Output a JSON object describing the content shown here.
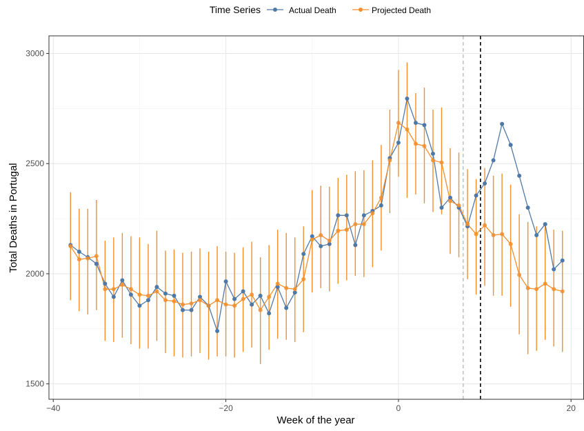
{
  "chart_data": {
    "type": "line",
    "xlabel": "Week of the year",
    "ylabel": "Total Deaths in Portugal",
    "xlim": [
      -40.5,
      21.5
    ],
    "ylim": [
      1430,
      3080
    ],
    "xticks": [
      -40,
      -20,
      0,
      20
    ],
    "xtick_labels": [
      "−40",
      "−20",
      "0",
      "20"
    ],
    "yticks": [
      1500,
      2000,
      2500,
      3000
    ],
    "ytick_labels": [
      "1500",
      "2000",
      "2500",
      "3000"
    ],
    "grid": true,
    "legend": {
      "title": "Time Series",
      "placement": "top",
      "entries": [
        {
          "name": "Actual Death",
          "color": "#4e79a7"
        },
        {
          "name": "Projected Death",
          "color": "#f28e2b"
        }
      ]
    },
    "vlines": [
      {
        "x": 7.5,
        "style": "dashed",
        "color": "#bbbbbb"
      },
      {
        "x": 9.5,
        "style": "dashed",
        "color": "#000000"
      }
    ],
    "x": [
      -38,
      -37,
      -36,
      -35,
      -34,
      -33,
      -32,
      -31,
      -30,
      -29,
      -28,
      -27,
      -26,
      -25,
      -24,
      -23,
      -22,
      -21,
      -20,
      -19,
      -18,
      -17,
      -16,
      -15,
      -14,
      -13,
      -12,
      -11,
      -10,
      -9,
      -8,
      -7,
      -6,
      -5,
      -4,
      -3,
      -2,
      -1,
      0,
      1,
      2,
      3,
      4,
      5,
      6,
      7,
      8,
      9,
      10,
      11,
      12,
      13,
      14,
      15,
      16,
      17,
      18,
      19
    ],
    "series": [
      {
        "name": "Actual Death",
        "color": "#4e79a7",
        "values": [
          2130,
          2100,
          2075,
          2045,
          1955,
          1895,
          1970,
          1905,
          1855,
          1880,
          1940,
          1910,
          1900,
          1835,
          1835,
          1895,
          1855,
          1740,
          1965,
          1885,
          1920,
          1860,
          1900,
          1820,
          1940,
          1845,
          1915,
          2090,
          2170,
          2125,
          2135,
          2265,
          2265,
          2130,
          2265,
          2285,
          2310,
          2525,
          2595,
          2795,
          2685,
          2675,
          2545,
          2300,
          2345,
          2300,
          2215,
          2355,
          2410,
          2515,
          2680,
          2585,
          2445,
          2300,
          2175,
          2225,
          2020,
          2060
        ]
      },
      {
        "name": "Projected Death",
        "color": "#f28e2b",
        "values": [
          2125,
          2065,
          2070,
          2080,
          1930,
          1930,
          1950,
          1930,
          1905,
          1900,
          1920,
          1880,
          1875,
          1860,
          1865,
          1880,
          1855,
          1880,
          1860,
          1855,
          1885,
          1905,
          1835,
          1895,
          1955,
          1935,
          1930,
          1975,
          2155,
          2175,
          2150,
          2195,
          2200,
          2225,
          2225,
          2275,
          2345,
          2515,
          2685,
          2655,
          2590,
          2580,
          2515,
          2505,
          2330,
          2310,
          2225,
          2180,
          2220,
          2175,
          2180,
          2135,
          1995,
          1935,
          1930,
          1955,
          1930,
          1920
        ],
        "lower": [
          1880,
          1830,
          1815,
          1835,
          1695,
          1690,
          1710,
          1680,
          1660,
          1660,
          1695,
          1640,
          1625,
          1620,
          1625,
          1640,
          1610,
          1625,
          1625,
          1620,
          1645,
          1665,
          1590,
          1655,
          1705,
          1700,
          1690,
          1735,
          1915,
          1935,
          1920,
          1955,
          1970,
          1990,
          1985,
          2030,
          2105,
          2275,
          2440,
          2345,
          2360,
          2320,
          2280,
          2270,
          2090,
          2075,
          1975,
          1905,
          1945,
          1900,
          1900,
          1850,
          1725,
          1635,
          1650,
          1700,
          1670,
          1645
        ],
        "upper": [
          2370,
          2295,
          2295,
          2335,
          2150,
          2165,
          2185,
          2170,
          2165,
          2135,
          2195,
          2105,
          2110,
          2095,
          2100,
          2115,
          2100,
          2125,
          2100,
          2095,
          2120,
          2145,
          2075,
          2130,
          2200,
          2185,
          2165,
          2215,
          2380,
          2400,
          2395,
          2435,
          2450,
          2465,
          2470,
          2515,
          2585,
          2745,
          2925,
          2960,
          2820,
          2845,
          2745,
          2755,
          2570,
          2550,
          2475,
          2430,
          2480,
          2445,
          2455,
          2405,
          2270,
          2235,
          2215,
          2225,
          2200,
          2195
        ]
      }
    ]
  }
}
